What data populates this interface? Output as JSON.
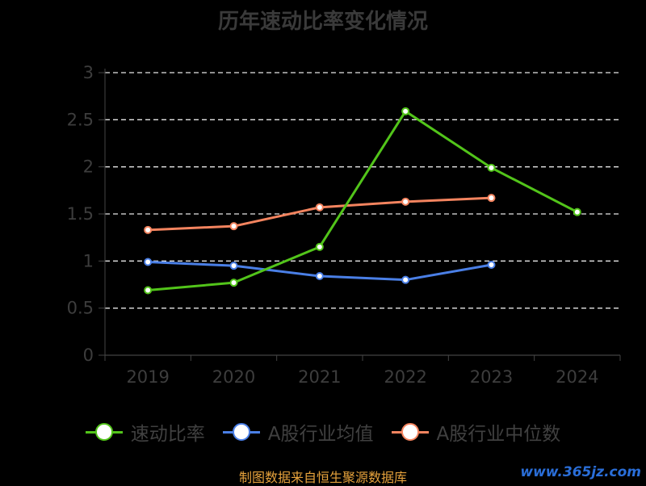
{
  "chart_data": {
    "type": "line",
    "title": "历年速动比率变化情况",
    "categories": [
      "2019",
      "2020",
      "2021",
      "2022",
      "2023",
      "2024"
    ],
    "ylim": [
      0,
      3
    ],
    "yticks": [
      "0",
      "0.5",
      "1",
      "1.5",
      "2",
      "2.5",
      "3"
    ],
    "grid": true,
    "legend_position": "bottom",
    "series": [
      {
        "name": "速动比率",
        "values": [
          0.69,
          0.77,
          1.15,
          2.59,
          1.99,
          1.52
        ],
        "color": "#52c41a"
      },
      {
        "name": "A股行业均值",
        "values": [
          0.99,
          0.95,
          0.84,
          0.8,
          0.96,
          null
        ],
        "color": "#4a7fe6"
      },
      {
        "name": "A股行业中位数",
        "values": [
          1.33,
          1.37,
          1.57,
          1.63,
          1.67,
          null
        ],
        "color": "#f4845f"
      }
    ]
  },
  "footer": {
    "source": "制图数据来自恒生聚源数据库",
    "watermark": "www.365jz.com"
  }
}
